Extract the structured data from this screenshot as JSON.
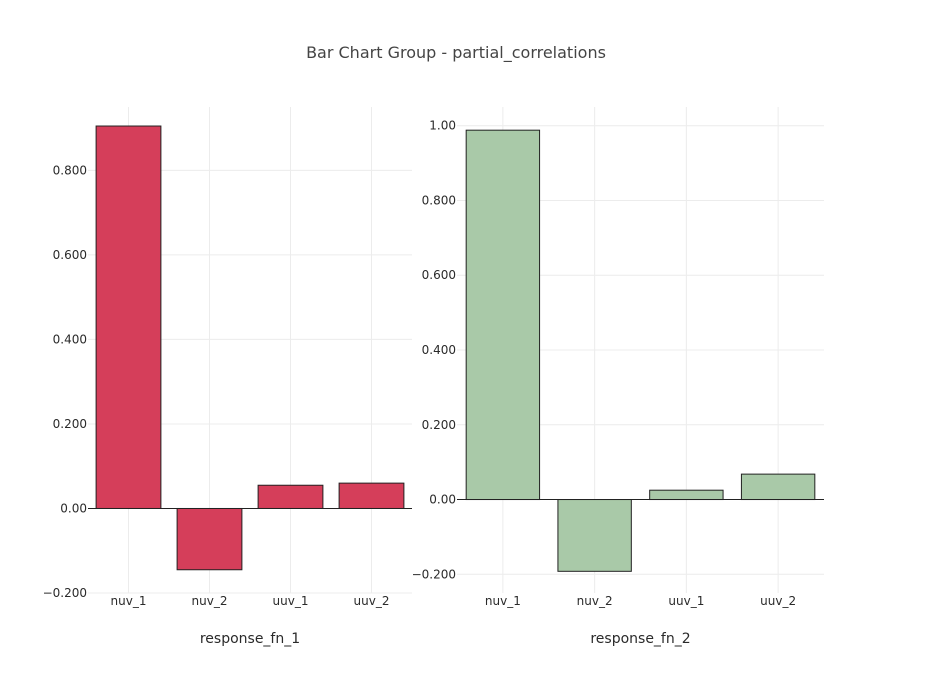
{
  "title": "Bar Chart Group - partial_correlations",
  "chart_data": [
    {
      "type": "bar",
      "categories": [
        "nuv_1",
        "nuv_2",
        "uuv_1",
        "uuv_2"
      ],
      "values": [
        0.905,
        -0.145,
        0.055,
        0.06
      ],
      "xlabel": "response_fn_1",
      "ylabel": "",
      "ylim": [
        -0.2,
        0.95
      ],
      "yticks": [
        -0.2,
        0.0,
        0.2,
        0.4,
        0.6,
        0.8
      ],
      "ytick_labels": [
        "−0.200",
        "0.00",
        "0.200",
        "0.400",
        "0.600",
        "0.800"
      ],
      "color": "#d53e5a",
      "grid": true
    },
    {
      "type": "bar",
      "categories": [
        "nuv_1",
        "nuv_2",
        "uuv_1",
        "uuv_2"
      ],
      "values": [
        0.988,
        -0.192,
        0.025,
        0.068
      ],
      "xlabel": "response_fn_2",
      "ylabel": "",
      "ylim": [
        -0.25,
        1.05
      ],
      "yticks": [
        -0.2,
        0.0,
        0.2,
        0.4,
        0.6,
        0.8,
        1.0
      ],
      "ytick_labels": [
        "−0.200",
        "0.00",
        "0.200",
        "0.400",
        "0.600",
        "0.800",
        "1.00"
      ],
      "color": "#a9c9a8",
      "grid": true
    }
  ]
}
